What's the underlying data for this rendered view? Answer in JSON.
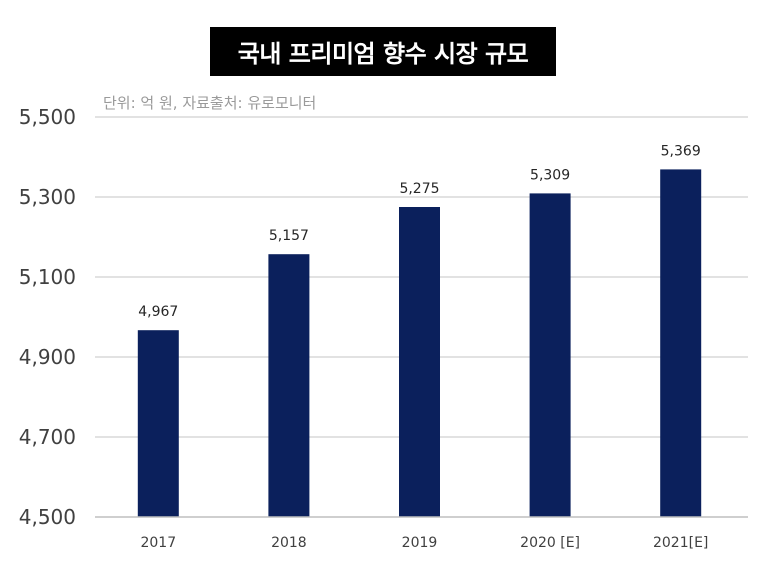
{
  "chart_data": {
    "type": "bar",
    "title": "국내 프리미엄 향수 시장 규모",
    "subtitle": "단위: 억 원, 자료출처: 유로모니터",
    "categories": [
      "2017",
      "2018",
      "2019",
      "2020 [E]",
      "2021[E]"
    ],
    "values": [
      4967,
      5157,
      5275,
      5309,
      5369
    ],
    "value_labels": [
      "4,967",
      "5,157",
      "5,275",
      "5,309",
      "5,369"
    ],
    "y_ticks": [
      4500,
      4700,
      4900,
      5100,
      5300,
      5500
    ],
    "y_tick_labels": [
      "4,500",
      "4,700",
      "4,900",
      "5,100",
      "5,300",
      "5,500"
    ],
    "ylim": [
      4500,
      5500
    ],
    "grid": true,
    "legend": "none",
    "colors": {
      "bar": "#0b205c",
      "grid": "#d9d9d9",
      "title_bg": "#000000"
    }
  }
}
